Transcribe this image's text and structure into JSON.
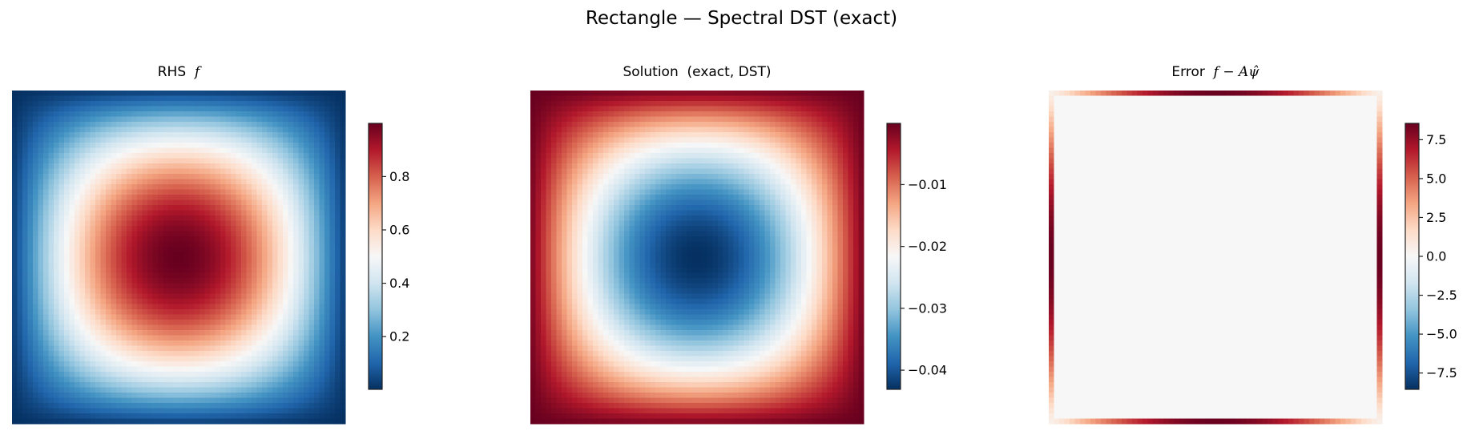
{
  "figure": {
    "title": "Rectangle — Spectral DST (exact)"
  },
  "chart_data": [
    {
      "type": "heatmap",
      "title": {
        "text": "RHS",
        "math": "f"
      },
      "grid": [
        64,
        64
      ],
      "colormap": "RdBu_r",
      "value_range": [
        0.0023,
        0.9994
      ],
      "pattern": "single smooth peak at center, decaying to zero at all edges",
      "peak_value": 0.9994,
      "colorbar": {
        "ticks": [
          0.2,
          0.4,
          0.6,
          0.8
        ],
        "tick_labels": [
          "0.2",
          "0.4",
          "0.6",
          "0.8"
        ]
      },
      "axes_visible": false
    },
    {
      "type": "heatmap",
      "title": {
        "text": "Solution  (exact, DST)",
        "math": ""
      },
      "grid": [
        64,
        64
      ],
      "colormap": "RdBu_r",
      "value_range": [
        -0.0431,
        -0.0001
      ],
      "pattern": "single smooth minimum at center, rising to zero at all edges",
      "peak_value": -0.0431,
      "colorbar": {
        "ticks": [
          -0.01,
          -0.02,
          -0.03,
          -0.04
        ],
        "tick_labels": [
          "−0.01",
          "−0.02",
          "−0.03",
          "−0.04"
        ]
      },
      "axes_visible": false
    },
    {
      "type": "heatmap",
      "title": {
        "text": "Error",
        "math": "f − Aψ̂"
      },
      "grid": [
        64,
        64
      ],
      "colormap": "RdBu_r",
      "value_range": [
        -8.55,
        8.55
      ],
      "pattern": "zero in interior; positive on one-cell boundary ring, largest at edge midpoints",
      "peak_value": 8.5,
      "interior_value": 0,
      "colorbar": {
        "ticks": [
          7.5,
          5.0,
          2.5,
          0.0,
          -2.5,
          -5.0,
          -7.5
        ],
        "tick_labels": [
          "7.5",
          "5.0",
          "2.5",
          "0.0",
          "−2.5",
          "−5.0",
          "−7.5"
        ]
      },
      "axes_visible": false
    }
  ],
  "colors": {
    "colormap_stops": [
      "#053061",
      "#2166ac",
      "#4393c3",
      "#92c5de",
      "#d1e5f0",
      "#f7f7f7",
      "#fddbc7",
      "#f4a582",
      "#d6604d",
      "#b2182b",
      "#67001f"
    ]
  }
}
